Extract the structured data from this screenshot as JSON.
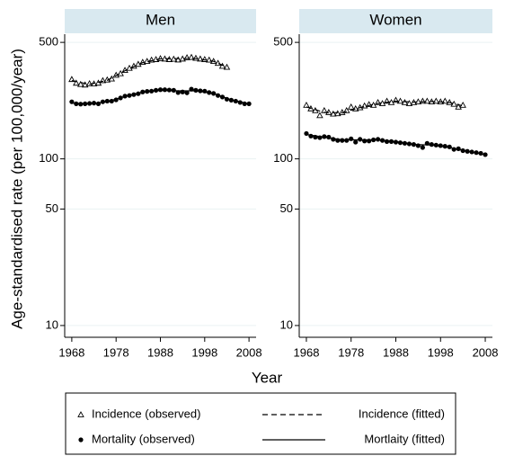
{
  "shared": {
    "ylabel": "Age-standardised rate (per 100,000/year)",
    "xlabel": "Year"
  },
  "chart_data": [
    {
      "type": "line",
      "title": "Men",
      "log_y": true,
      "grid": true,
      "xlim": [
        1966.4,
        2009.6
      ],
      "xticks": [
        1968,
        1978,
        1988,
        1998,
        2008
      ],
      "ylim": [
        8.5,
        560
      ],
      "yticks": [
        10,
        50,
        100,
        500
      ],
      "series": [
        {
          "name": "Incidence (observed)",
          "style": "markers",
          "marker": "triangle",
          "color": "#000000",
          "x": [
            1968,
            1969,
            1970,
            1971,
            1972,
            1973,
            1974,
            1975,
            1976,
            1977,
            1978,
            1979,
            1980,
            1981,
            1982,
            1983,
            1984,
            1985,
            1986,
            1987,
            1988,
            1989,
            1990,
            1991,
            1992,
            1993,
            1994,
            1995,
            1996,
            1997,
            1998,
            1999,
            2000,
            2001,
            2002,
            2003
          ],
          "values": [
            300,
            285,
            280,
            278,
            283,
            282,
            285,
            295,
            298,
            302,
            318,
            325,
            340,
            350,
            360,
            370,
            380,
            385,
            392,
            395,
            400,
            398,
            395,
            397,
            393,
            398,
            405,
            407,
            402,
            398,
            395,
            392,
            385,
            375,
            360,
            355
          ]
        },
        {
          "name": "Mortality (observed)",
          "style": "markers",
          "marker": "circle",
          "color": "#000000",
          "x": [
            1968,
            1969,
            1970,
            1971,
            1972,
            1973,
            1974,
            1975,
            1976,
            1977,
            1978,
            1979,
            1980,
            1981,
            1982,
            1983,
            1984,
            1985,
            1986,
            1987,
            1988,
            1989,
            1990,
            1991,
            1992,
            1993,
            1994,
            1995,
            1996,
            1997,
            1998,
            1999,
            2000,
            2001,
            2002,
            2003,
            2004,
            2005,
            2006,
            2007,
            2008
          ],
          "values": [
            220,
            214,
            213,
            214,
            215,
            216,
            214,
            220,
            222,
            222,
            226,
            232,
            238,
            240,
            243,
            246,
            252,
            254,
            255,
            258,
            260,
            260,
            259,
            258,
            250,
            252,
            249,
            262,
            258,
            256,
            255,
            250,
            247,
            240,
            235,
            228,
            225,
            222,
            218,
            214,
            214
          ]
        },
        {
          "name": "Incidence (fitted)",
          "style": "line",
          "dash": true,
          "color": "#000000",
          "x": [
            1968,
            1972,
            1976,
            1980,
            1984,
            1988,
            1992,
            1996,
            2000,
            2003
          ],
          "values": [
            295,
            280,
            296,
            338,
            378,
            398,
            400,
            400,
            385,
            355
          ]
        },
        {
          "name": "Mortlaity (fitted)",
          "style": "line",
          "dash": false,
          "color": "#000000",
          "x": [
            1968,
            1972,
            1976,
            1980,
            1984,
            1988,
            1992,
            1996,
            2000,
            2004,
            2008
          ],
          "values": [
            216,
            214,
            220,
            237,
            251,
            258,
            256,
            256,
            247,
            226,
            214
          ]
        }
      ]
    },
    {
      "type": "line",
      "title": "Women",
      "log_y": true,
      "grid": true,
      "xlim": [
        1966.4,
        2009.6
      ],
      "xticks": [
        1968,
        1978,
        1988,
        1998,
        2008
      ],
      "ylim": [
        8.5,
        560
      ],
      "yticks": [
        10,
        50,
        100,
        500
      ],
      "series": [
        {
          "name": "Incidence (observed)",
          "style": "markers",
          "marker": "triangle",
          "color": "#000000",
          "x": [
            1968,
            1969,
            1970,
            1971,
            1972,
            1973,
            1974,
            1975,
            1976,
            1977,
            1978,
            1979,
            1980,
            1981,
            1982,
            1983,
            1984,
            1985,
            1986,
            1987,
            1988,
            1989,
            1990,
            1991,
            1992,
            1993,
            1994,
            1995,
            1996,
            1997,
            1998,
            1999,
            2000,
            2001,
            2002,
            2003
          ],
          "values": [
            210,
            200,
            195,
            182,
            195,
            190,
            186,
            187,
            190,
            195,
            205,
            200,
            203,
            208,
            212,
            210,
            218,
            215,
            222,
            218,
            225,
            222,
            218,
            215,
            218,
            220,
            222,
            222,
            220,
            222,
            220,
            222,
            218,
            213,
            205,
            210
          ]
        },
        {
          "name": "Mortality (observed)",
          "style": "markers",
          "marker": "circle",
          "color": "#000000",
          "x": [
            1968,
            1969,
            1970,
            1971,
            1972,
            1973,
            1974,
            1975,
            1976,
            1977,
            1978,
            1979,
            1980,
            1981,
            1982,
            1983,
            1984,
            1985,
            1986,
            1987,
            1988,
            1989,
            1990,
            1991,
            1992,
            1993,
            1994,
            1995,
            1996,
            1997,
            1998,
            1999,
            2000,
            2001,
            2002,
            2003,
            2004,
            2005,
            2006,
            2007,
            2008
          ],
          "values": [
            142,
            137,
            135,
            134,
            136,
            135,
            131,
            129,
            129,
            129,
            132,
            126,
            131,
            128,
            128,
            130,
            131,
            129,
            127,
            127,
            126,
            125,
            124,
            123,
            122,
            120,
            117,
            124,
            122,
            121,
            120,
            119,
            118,
            114,
            115,
            112,
            111,
            110,
            109,
            108,
            106
          ]
        },
        {
          "name": "Incidence (fitted)",
          "style": "line",
          "dash": true,
          "color": "#000000",
          "x": [
            1968,
            1972,
            1976,
            1980,
            1984,
            1988,
            1992,
            1996,
            2000,
            2003
          ],
          "values": [
            205,
            190,
            189,
            203,
            215,
            222,
            219,
            221,
            218,
            208
          ]
        },
        {
          "name": "Mortlaity (fitted)",
          "style": "line",
          "dash": false,
          "color": "#000000",
          "x": [
            1968,
            1972,
            1976,
            1980,
            1984,
            1988,
            1992,
            1996,
            2000,
            2004,
            2008
          ],
          "values": [
            140,
            135,
            130,
            130,
            130,
            127,
            122,
            121,
            117,
            111,
            106
          ]
        }
      ]
    }
  ]
}
